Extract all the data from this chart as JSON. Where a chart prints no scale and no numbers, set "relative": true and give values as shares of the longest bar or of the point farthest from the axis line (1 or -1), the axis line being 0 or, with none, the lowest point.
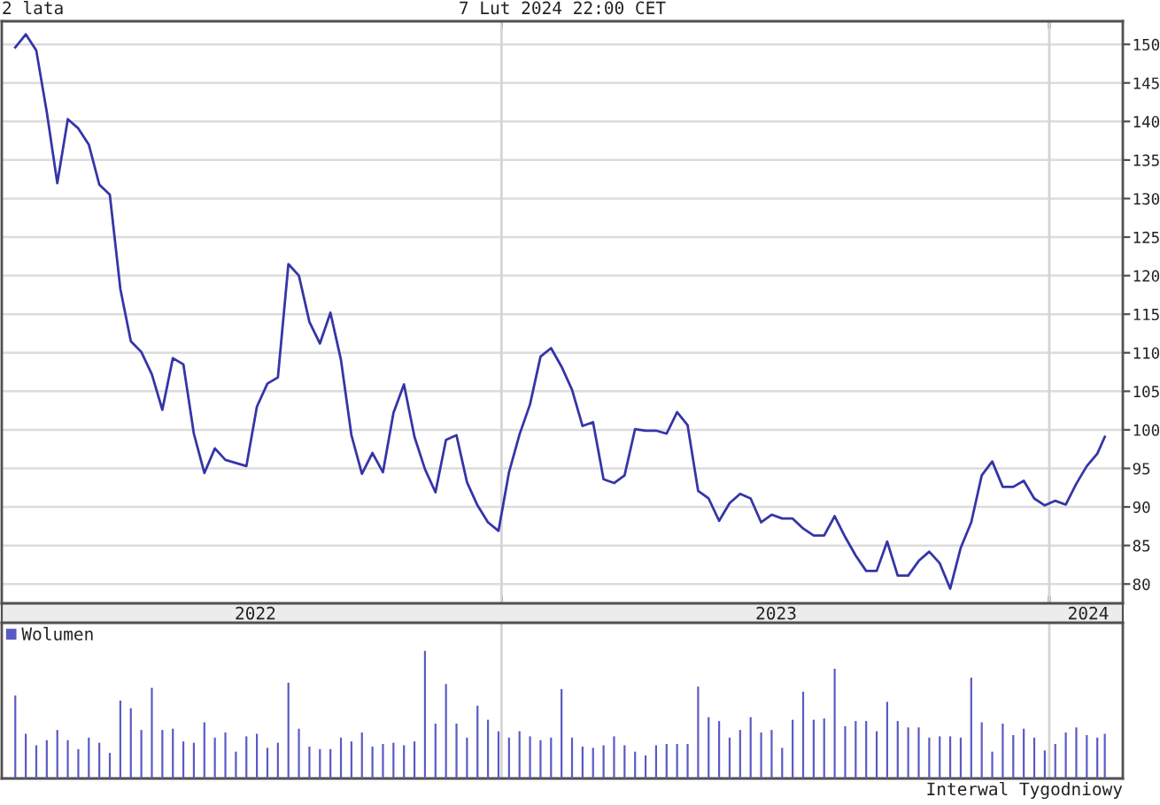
{
  "chart_data": [
    {
      "type": "line",
      "title": "2 lata",
      "subtitle": "7 Lut 2024 22:00 CET",
      "x": [
        "2022-02-11",
        "2022-02-18",
        "2022-02-25",
        "2022-03-04",
        "2022-03-11",
        "2022-03-18",
        "2022-03-25",
        "2022-04-01",
        "2022-04-08",
        "2022-04-15",
        "2022-04-22",
        "2022-04-29",
        "2022-05-06",
        "2022-05-13",
        "2022-05-20",
        "2022-05-27",
        "2022-06-03",
        "2022-06-10",
        "2022-06-17",
        "2022-06-24",
        "2022-07-01",
        "2022-07-08",
        "2022-07-15",
        "2022-07-22",
        "2022-07-29",
        "2022-08-05",
        "2022-08-12",
        "2022-08-19",
        "2022-08-26",
        "2022-09-02",
        "2022-09-09",
        "2022-09-16",
        "2022-09-23",
        "2022-09-30",
        "2022-10-07",
        "2022-10-14",
        "2022-10-21",
        "2022-10-28",
        "2022-11-04",
        "2022-11-11",
        "2022-11-18",
        "2022-11-25",
        "2022-12-02",
        "2022-12-09",
        "2022-12-16",
        "2022-12-23",
        "2022-12-30",
        "2023-01-06",
        "2023-01-13",
        "2023-01-20",
        "2023-01-27",
        "2023-02-03",
        "2023-02-10",
        "2023-02-17",
        "2023-02-24",
        "2023-03-03",
        "2023-03-10",
        "2023-03-17",
        "2023-03-24",
        "2023-03-31",
        "2023-04-07",
        "2023-04-14",
        "2023-04-21",
        "2023-04-28",
        "2023-05-05",
        "2023-05-12",
        "2023-05-19",
        "2023-05-26",
        "2023-06-02",
        "2023-06-09",
        "2023-06-16",
        "2023-06-23",
        "2023-06-30",
        "2023-07-07",
        "2023-07-14",
        "2023-07-21",
        "2023-07-28",
        "2023-08-04",
        "2023-08-11",
        "2023-08-18",
        "2023-08-25",
        "2023-09-01",
        "2023-09-08",
        "2023-09-15",
        "2023-09-22",
        "2023-09-29",
        "2023-10-06",
        "2023-10-13",
        "2023-10-20",
        "2023-10-27",
        "2023-11-03",
        "2023-11-10",
        "2023-11-17",
        "2023-11-24",
        "2023-12-01",
        "2023-12-08",
        "2023-12-15",
        "2023-12-22",
        "2023-12-29",
        "2024-01-05",
        "2024-01-12",
        "2024-01-19",
        "2024-01-26",
        "2024-02-02",
        "2024-02-07"
      ],
      "series": [
        {
          "color": "#3535a8",
          "values": [
            149.6,
            151.3,
            149.2,
            141.2,
            132.0,
            140.3,
            139.1,
            137.0,
            131.8,
            130.5,
            118.3,
            111.5,
            110.1,
            107.2,
            102.6,
            109.3,
            108.5,
            99.5,
            94.4,
            97.6,
            96.1,
            95.7,
            95.3,
            103.0,
            106.0,
            106.8,
            121.5,
            120.0,
            114.0,
            111.2,
            115.2,
            109.1,
            99.3,
            94.3,
            97.0,
            94.5,
            102.2,
            105.9,
            99.1,
            94.9,
            91.9,
            98.7,
            99.3,
            93.2,
            90.2,
            88.0,
            86.9,
            94.5,
            99.4,
            103.3,
            109.5,
            110.6,
            108.2,
            105.2,
            100.5,
            101.0,
            93.6,
            93.1,
            94.1,
            100.1,
            99.9,
            99.9,
            99.5,
            102.3,
            100.6,
            92.1,
            91.1,
            88.2,
            90.5,
            91.7,
            91.1,
            88.0,
            89.0,
            88.5,
            88.5,
            87.2,
            86.3,
            86.3,
            88.8,
            86.1,
            83.7,
            81.7,
            81.7,
            85.5,
            81.1,
            81.1,
            83.0,
            84.2,
            82.7,
            79.4,
            84.7,
            88.0,
            94.1,
            95.9,
            92.6,
            92.6,
            93.4,
            91.1,
            90.2,
            90.8,
            90.3,
            93.0,
            95.3,
            96.9,
            99.1
          ]
        }
      ],
      "xlim": [
        "2022-02-02",
        "2024-02-19"
      ],
      "xticks": [
        {
          "value": "2022-07-21",
          "label": "2022"
        },
        {
          "value": "2023-01-01",
          "label": null
        },
        {
          "value": "2023-07-03",
          "label": "2023"
        },
        {
          "value": "2024-01-01",
          "label": null
        },
        {
          "value": "2024-01-27",
          "label": "2024"
        }
      ],
      "ylim": [
        77.5,
        153
      ],
      "yticks": [
        80,
        85,
        90,
        95,
        100,
        105,
        110,
        115,
        120,
        125,
        130,
        135,
        140,
        145,
        150
      ],
      "grid": "y",
      "ref_lines": [
        {
          "axis": "x",
          "value": "2023-01-01",
          "color": "#d4d4d4"
        },
        {
          "axis": "x",
          "value": "2024-01-01",
          "color": "#d4d4d4"
        }
      ]
    },
    {
      "type": "bar",
      "relative": true,
      "x": [
        "2022-02-11",
        "2022-02-18",
        "2022-02-25",
        "2022-03-04",
        "2022-03-11",
        "2022-03-18",
        "2022-03-25",
        "2022-04-01",
        "2022-04-08",
        "2022-04-15",
        "2022-04-22",
        "2022-04-29",
        "2022-05-06",
        "2022-05-13",
        "2022-05-20",
        "2022-05-27",
        "2022-06-03",
        "2022-06-10",
        "2022-06-17",
        "2022-06-24",
        "2022-07-01",
        "2022-07-08",
        "2022-07-15",
        "2022-07-22",
        "2022-07-29",
        "2022-08-05",
        "2022-08-12",
        "2022-08-19",
        "2022-08-26",
        "2022-09-02",
        "2022-09-09",
        "2022-09-16",
        "2022-09-23",
        "2022-09-30",
        "2022-10-07",
        "2022-10-14",
        "2022-10-21",
        "2022-10-28",
        "2022-11-04",
        "2022-11-11",
        "2022-11-18",
        "2022-11-25",
        "2022-12-02",
        "2022-12-09",
        "2022-12-16",
        "2022-12-23",
        "2022-12-30",
        "2023-01-06",
        "2023-01-13",
        "2023-01-20",
        "2023-01-27",
        "2023-02-03",
        "2023-02-10",
        "2023-02-17",
        "2023-02-24",
        "2023-03-03",
        "2023-03-10",
        "2023-03-17",
        "2023-03-24",
        "2023-03-31",
        "2023-04-07",
        "2023-04-14",
        "2023-04-21",
        "2023-04-28",
        "2023-05-05",
        "2023-05-12",
        "2023-05-19",
        "2023-05-26",
        "2023-06-02",
        "2023-06-09",
        "2023-06-16",
        "2023-06-23",
        "2023-06-30",
        "2023-07-07",
        "2023-07-14",
        "2023-07-21",
        "2023-07-28",
        "2023-08-04",
        "2023-08-11",
        "2023-08-18",
        "2023-08-25",
        "2023-09-01",
        "2023-09-08",
        "2023-09-15",
        "2023-09-22",
        "2023-09-29",
        "2023-10-06",
        "2023-10-13",
        "2023-10-20",
        "2023-10-27",
        "2023-11-03",
        "2023-11-10",
        "2023-11-17",
        "2023-11-24",
        "2023-12-01",
        "2023-12-08",
        "2023-12-15",
        "2023-12-22",
        "2023-12-29",
        "2024-01-05",
        "2024-01-12",
        "2024-01-19",
        "2024-01-26",
        "2024-02-02",
        "2024-02-07"
      ],
      "series": [
        {
          "name": "Wolumen",
          "color": "#5a5ac4",
          "values": [
            0.65,
            0.35,
            0.26,
            0.3,
            0.38,
            0.3,
            0.23,
            0.32,
            0.28,
            0.2,
            0.61,
            0.55,
            0.38,
            0.71,
            0.38,
            0.39,
            0.29,
            0.28,
            0.44,
            0.32,
            0.36,
            0.21,
            0.33,
            0.35,
            0.24,
            0.28,
            0.75,
            0.39,
            0.25,
            0.23,
            0.23,
            0.32,
            0.29,
            0.36,
            0.25,
            0.27,
            0.28,
            0.26,
            0.29,
            1,
            0.43,
            0.74,
            0.43,
            0.32,
            0.57,
            0.46,
            0.37,
            0.32,
            0.37,
            0.33,
            0.3,
            0.32,
            0.7,
            0.32,
            0.25,
            0.24,
            0.26,
            0.33,
            0.26,
            0.21,
            0.18,
            0.26,
            0.27,
            0.27,
            0.27,
            0.72,
            0.48,
            0.45,
            0.32,
            0.38,
            0.48,
            0.36,
            0.38,
            0.24,
            0.46,
            0.68,
            0.46,
            0.47,
            0.86,
            0.41,
            0.45,
            0.45,
            0.37,
            0.6,
            0.45,
            0.4,
            0.4,
            0.32,
            0.33,
            0.33,
            0.32,
            0.79,
            0.44,
            0.21,
            0.43,
            0.34,
            0.39,
            0.32,
            0.22,
            0.27,
            0.36,
            0.4,
            0.34,
            0.32,
            0.35
          ]
        }
      ],
      "xlim": [
        "2022-02-02",
        "2024-02-19"
      ],
      "tick_labels": false,
      "legend": "top left",
      "ref_lines": [
        {
          "axis": "x",
          "value": "2023-01-01",
          "color": "#d4d4d4"
        },
        {
          "axis": "x",
          "value": "2024-01-01",
          "color": "#d4d4d4"
        }
      ],
      "annotations": [
        "Interwal Tygodniowy"
      ]
    }
  ]
}
